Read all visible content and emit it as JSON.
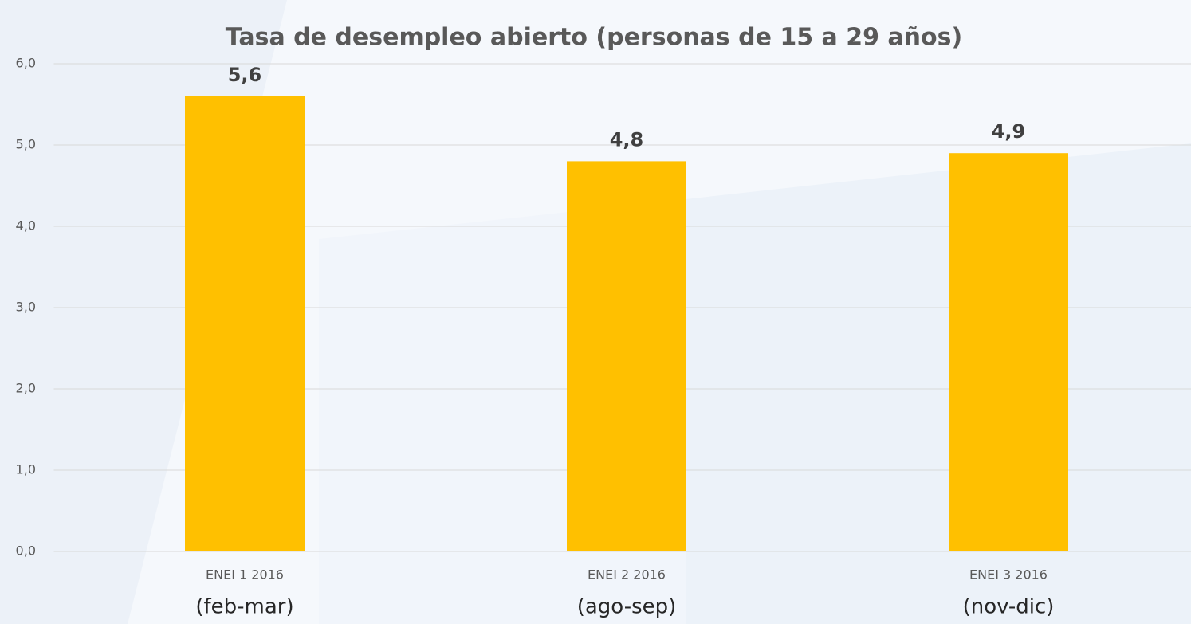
{
  "chart_data": {
    "type": "bar",
    "title": "Tasa de desempleo abierto (personas de 15 a 29 años)",
    "categories": [
      "ENEI 1 2016",
      "ENEI 2 2016",
      "ENEI 3 2016"
    ],
    "category_sublabels": [
      "(feb-mar)",
      "(ago-sep)",
      "(nov-dic)"
    ],
    "values": [
      5.6,
      4.8,
      4.9
    ],
    "value_labels": [
      "5,6",
      "4,8",
      "4,9"
    ],
    "color": "#ffc000",
    "ylim": [
      0,
      6
    ],
    "yticks": [
      {
        "value": 0,
        "label": "0,0"
      },
      {
        "value": 1,
        "label": "1,0"
      },
      {
        "value": 2,
        "label": "2,0"
      },
      {
        "value": 3,
        "label": "3,0"
      },
      {
        "value": 4,
        "label": "4,0"
      },
      {
        "value": 5,
        "label": "5,0"
      },
      {
        "value": 6,
        "label": "6,0"
      }
    ],
    "grid": true
  }
}
